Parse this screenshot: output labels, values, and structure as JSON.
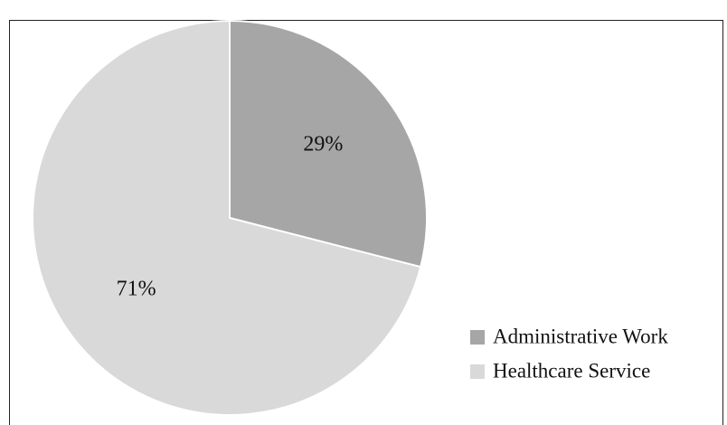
{
  "chart_data": {
    "type": "pie",
    "categories": [
      "Administrative Work",
      "Healthcare Service"
    ],
    "values": [
      29,
      71
    ],
    "value_labels": [
      "29%",
      "71%"
    ],
    "colors": [
      "#a6a6a6",
      "#d9d9d9"
    ],
    "start_angle": 0,
    "direction": "clockwise",
    "legend": "right-bottom"
  }
}
